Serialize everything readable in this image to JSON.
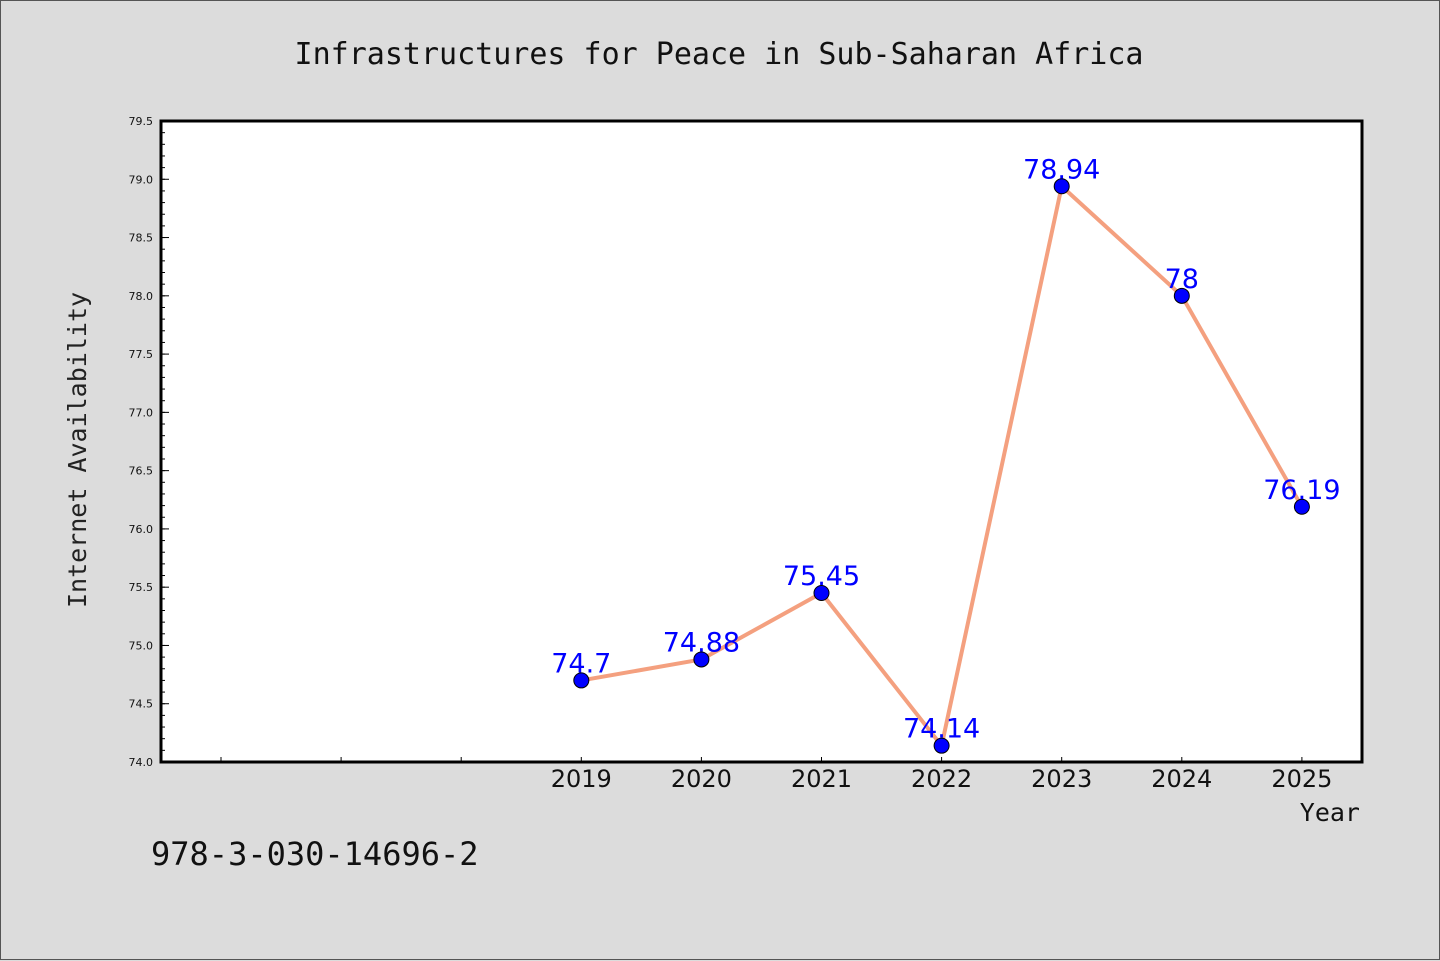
{
  "chart_data": {
    "type": "line",
    "title": "Infrastructures for Peace in Sub-Saharan Africa",
    "xlabel": "Year",
    "ylabel": "Internet Availability",
    "categories": [
      "2019",
      "2020",
      "2021",
      "2022",
      "2023",
      "2024",
      "2025"
    ],
    "series": [
      {
        "values": [
          74.7,
          74.88,
          75.45,
          74.14,
          78.94,
          78,
          76.19
        ],
        "data_labels": [
          "74.7",
          "74.88",
          "75.45",
          "74.14",
          "78.94",
          "78",
          "76.19"
        ]
      }
    ],
    "ylim": [
      74.0,
      79.5
    ],
    "yticks": [
      "74.0",
      "74.5",
      "75.0",
      "75.5",
      "76.0",
      "76.5",
      "77.0",
      "77.5",
      "78.0",
      "78.5",
      "79.0",
      "79.5"
    ],
    "grid": false,
    "legend": "none",
    "line_color": "#f4a07f",
    "marker_color": "#0000ff",
    "label_color": "#0000ff",
    "background": "#dcdcdc",
    "plot_background": "#ffffff"
  },
  "footnote": "978-3-030-14696-2"
}
